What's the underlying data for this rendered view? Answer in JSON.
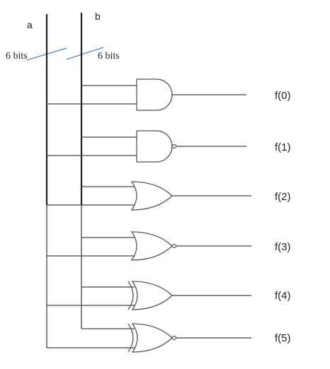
{
  "inputs": [
    {
      "id": "a",
      "label": "a",
      "width_label": "6 bits"
    },
    {
      "id": "b",
      "label": "b",
      "width_label": "6 bits"
    }
  ],
  "gates": [
    {
      "type": "AND",
      "inverted": false,
      "output": "f(0)"
    },
    {
      "type": "AND",
      "inverted": true,
      "output": "f(1)"
    },
    {
      "type": "OR",
      "inverted": false,
      "output": "f(2)"
    },
    {
      "type": "OR",
      "inverted": true,
      "output": "f(3)"
    },
    {
      "type": "XOR",
      "inverted": false,
      "output": "f(4)"
    },
    {
      "type": "XOR",
      "inverted": true,
      "output": "f(5)"
    }
  ],
  "colors": {
    "wire": "#444444",
    "slash": "#5b7fbf"
  }
}
